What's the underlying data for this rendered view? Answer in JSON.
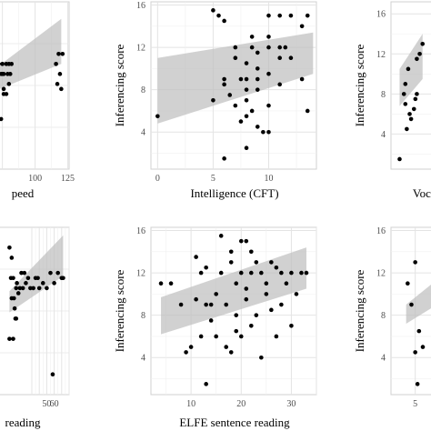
{
  "chart_data": [
    {
      "id": "p1",
      "type": "scatter",
      "xlabel": "peed",
      "ylabel": "",
      "xlim": [
        69,
        126
      ],
      "ylim": [
        0.5,
        17.2
      ],
      "xticks": [
        100,
        125
      ],
      "yticks": [],
      "x": [
        75,
        75,
        76,
        78,
        79,
        80,
        81,
        82,
        72,
        74,
        76,
        78,
        80,
        76,
        74,
        72,
        118,
        121,
        116,
        119,
        117,
        120
      ],
      "y": [
        10,
        11,
        10,
        11,
        10,
        11,
        10,
        11,
        11,
        10,
        8.5,
        8,
        9,
        8,
        5.5,
        5.5,
        12,
        12,
        11,
        10,
        9,
        8.5
      ],
      "band_x": [
        69,
        120
      ],
      "band_hi": [
        10.5,
        15.5
      ],
      "band_lo": [
        8.3,
        11.0
      ]
    },
    {
      "id": "p2",
      "type": "scatter",
      "xlabel": "Intelligence (CFT)",
      "ylabel": "Inferencing score",
      "xlim": [
        -0.6,
        14.3
      ],
      "ylim": [
        0.5,
        16.3
      ],
      "xticks": [
        0,
        5,
        10
      ],
      "yticks": [
        4,
        8,
        12,
        16
      ],
      "x": [
        0,
        5,
        5.5,
        6,
        6,
        6,
        6,
        6.5,
        7,
        7,
        7,
        7.5,
        7.5,
        8,
        8,
        8,
        8,
        8,
        8.5,
        8.5,
        8.5,
        9,
        9,
        9,
        9,
        9,
        10,
        10,
        10,
        10,
        10,
        10,
        11,
        11,
        11,
        11,
        12,
        12,
        13,
        13,
        13.5,
        13.5,
        5,
        8,
        9.5,
        11.5
      ],
      "y": [
        5.5,
        15.5,
        15,
        14.5,
        9,
        8.5,
        1.5,
        7.5,
        12,
        11,
        6.5,
        9,
        5,
        10.5,
        9,
        8,
        7,
        5.5,
        13,
        12,
        6,
        11.5,
        10,
        9,
        8,
        4.5,
        15,
        13,
        12,
        9.5,
        6.5,
        4,
        15,
        12,
        11,
        8.5,
        15,
        11,
        14,
        9,
        15,
        6,
        7,
        2.5,
        4,
        12
      ],
      "band_x": [
        0,
        14
      ],
      "band_hi": [
        11.0,
        13.4
      ],
      "band_lo": [
        4.8,
        9.5
      ]
    },
    {
      "id": "p3",
      "type": "scatter",
      "xlabel": "Vocab",
      "ylabel": "Inferencing score",
      "xlim": [
        1,
        20
      ],
      "ylim": [
        0.5,
        17.2
      ],
      "xticks": [],
      "yticks": [
        4,
        8,
        12,
        16
      ],
      "x": [
        4,
        6,
        6.5,
        7,
        8,
        9,
        10,
        11,
        5.5,
        7.5,
        6,
        9.5,
        10,
        12
      ],
      "y": [
        1.5,
        7,
        4.5,
        10.5,
        5.5,
        6.5,
        8,
        12,
        8,
        6,
        9,
        7.5,
        11.5,
        13
      ],
      "band_x": [
        4,
        12
      ],
      "band_hi": [
        10.5,
        14
      ],
      "band_lo": [
        6.8,
        9.5
      ]
    },
    {
      "id": "p4",
      "type": "scatter",
      "xlabel": "reading",
      "ylabel": "",
      "xlim": [
        -20,
        80
      ],
      "ylim": [
        0.5,
        17
      ],
      "xticks": [
        50,
        60
      ],
      "yticks": [],
      "x": [
        0,
        2,
        3,
        5,
        7,
        9,
        0,
        5,
        8,
        10,
        12,
        14,
        16,
        18,
        20,
        22,
        25,
        28,
        32,
        35,
        38,
        40,
        45,
        50,
        55,
        60,
        65,
        70,
        72,
        58,
        3,
        6,
        9
      ],
      "y": [
        15,
        12,
        10,
        12,
        9,
        8,
        6,
        6,
        8,
        11.5,
        10.5,
        11,
        12.5,
        11,
        12.5,
        11.5,
        12,
        11,
        11,
        12,
        12,
        11,
        11.5,
        11,
        12.5,
        11.5,
        12.5,
        12,
        12,
        2.5,
        14,
        10,
        11
      ],
      "band_x": [
        0,
        72
      ],
      "band_hi": [
        10.7,
        16.2
      ],
      "band_lo": [
        8.6,
        12.2
      ]
    },
    {
      "id": "p5",
      "type": "scatter",
      "xlabel": "ELFE sentence reading",
      "ylabel": "Inferencing score",
      "xlim": [
        2,
        35
      ],
      "ylim": [
        0.5,
        16.3
      ],
      "xticks": [
        10,
        20,
        30
      ],
      "yticks": [
        4,
        8,
        12,
        16
      ],
      "x": [
        4,
        6,
        8,
        9,
        10,
        11,
        11,
        12,
        12,
        13,
        13,
        13,
        14,
        14,
        15,
        15,
        16,
        16,
        17,
        17,
        18,
        18,
        18,
        19,
        19,
        19,
        20,
        20,
        20,
        21,
        21,
        21,
        22,
        22,
        22,
        23,
        23,
        24,
        24,
        25,
        25,
        26,
        26,
        27,
        27,
        28,
        28,
        29,
        30,
        30,
        31,
        32,
        33
      ],
      "y": [
        11,
        11,
        9,
        4.5,
        5,
        13.5,
        9.5,
        12,
        6,
        12.5,
        1.5,
        9,
        9,
        7.5,
        10,
        6,
        15.5,
        12,
        9,
        5,
        14,
        13,
        4.5,
        11,
        8,
        6.5,
        15,
        12,
        6,
        15,
        10.5,
        9.5,
        14,
        12,
        7,
        13,
        8,
        12,
        4,
        11,
        10,
        13,
        8.5,
        12.5,
        6,
        12,
        9,
        11,
        12,
        7,
        10,
        12,
        12
      ],
      "band_x": [
        4,
        33
      ],
      "band_hi": [
        9.7,
        14.4
      ],
      "band_lo": [
        6.2,
        10.5
      ]
    },
    {
      "id": "p6",
      "type": "scatter",
      "xlabel": "",
      "ylabel": "Inferencing score",
      "xlim": [
        1.8,
        9
      ],
      "ylim": [
        0.5,
        16.3
      ],
      "xticks": [
        5
      ],
      "yticks": [
        4,
        8,
        12,
        16
      ],
      "x": [
        4,
        4.5,
        5,
        5.5,
        6,
        5,
        5.3
      ],
      "y": [
        11,
        9,
        13,
        6.5,
        5,
        4.5,
        1.5
      ],
      "band_x": [
        3.8,
        9
      ],
      "band_hi": [
        9,
        12
      ],
      "band_lo": [
        7.2,
        9.5
      ]
    }
  ]
}
